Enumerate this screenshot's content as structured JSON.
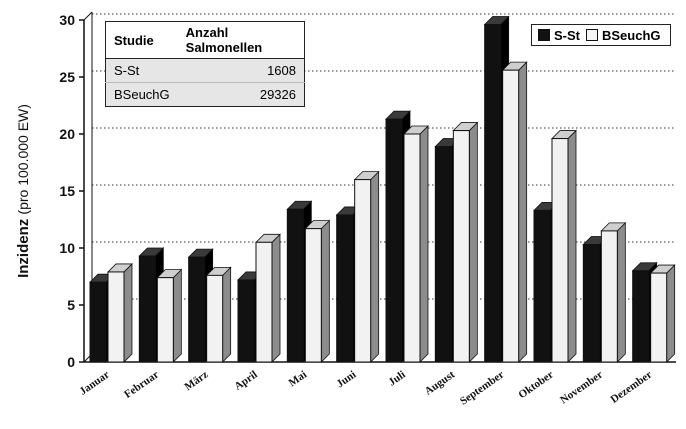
{
  "chart_data": {
    "type": "bar",
    "categories": [
      "Januar",
      "Februar",
      "März",
      "April",
      "Mai",
      "Juni",
      "Juli",
      "August",
      "September",
      "Oktober",
      "November",
      "Dezember"
    ],
    "series": [
      {
        "name": "S-St",
        "values": [
          7.0,
          9.3,
          9.2,
          7.2,
          13.4,
          12.9,
          21.3,
          18.9,
          29.6,
          13.3,
          10.3,
          8.0
        ]
      },
      {
        "name": "BSeuchG",
        "values": [
          7.9,
          7.4,
          7.6,
          10.5,
          11.7,
          16.0,
          20.0,
          20.3,
          25.6,
          19.6,
          11.5,
          7.8
        ]
      }
    ],
    "xlabel": "",
    "ylabel_main": "Inzidenz",
    "ylabel_unit": "(pro 100.000 EW)",
    "ylim": [
      0,
      30
    ],
    "yticks": [
      0,
      5,
      10,
      15,
      20,
      25,
      30
    ],
    "grid": true,
    "legend_position": "top-right",
    "colors": {
      "S-St": "#111111",
      "BSeuchG": "#f2f2f2"
    }
  },
  "table": {
    "headers": [
      "Studie",
      "Anzahl Salmonellen"
    ],
    "rows": [
      [
        "S-St",
        "1608"
      ],
      [
        "BSeuchG",
        "29326"
      ]
    ]
  }
}
